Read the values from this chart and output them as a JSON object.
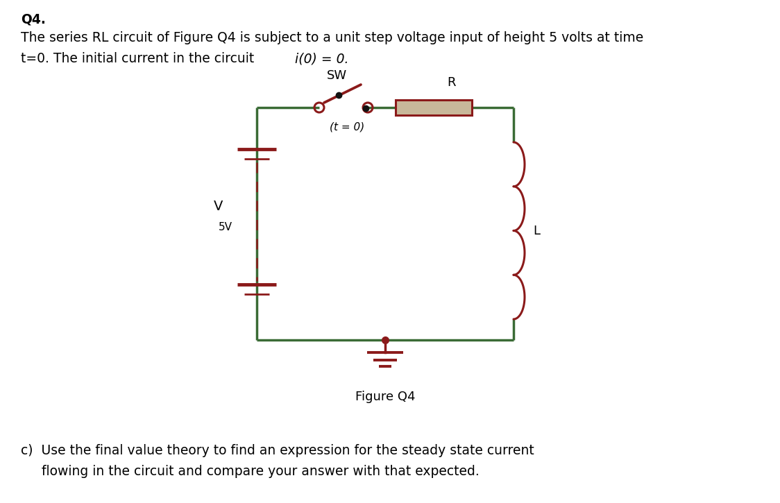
{
  "title_q": "Q4.",
  "line1": "The series RL circuit of Figure Q4 is subject to a unit step voltage input of height 5 volts at time",
  "line2a": "t=0. The initial current in the circuit ",
  "line2b": "i(0) = 0.",
  "sw_label": "SW",
  "t0_label": "(t = 0)",
  "R_label": "R",
  "L_label": "L",
  "V_label": "V",
  "V_val": "5V",
  "fig_caption": "Figure Q4",
  "partc_line1": "c)  Use the final value theory to find an expression for the steady state current",
  "partc_line2": "     flowing in the circuit and compare your answer with that expected.",
  "circuit_color": "#3a6b35",
  "component_color": "#8b1a1a",
  "bg_color": "#ffffff",
  "text_color": "#000000",
  "circuit_lw": 2.5,
  "component_lw": 2.2,
  "font_size_main": 13.5,
  "font_size_label": 13,
  "font_size_small": 11
}
